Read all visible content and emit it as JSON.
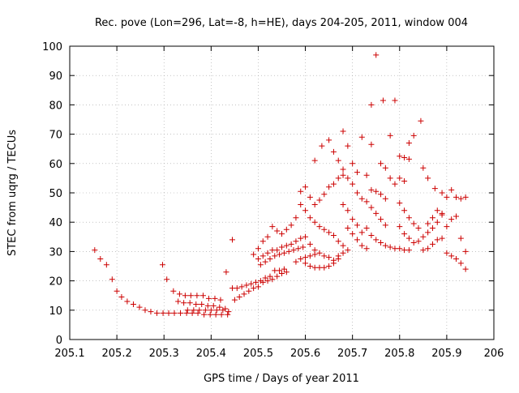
{
  "chart_data": {
    "type": "scatter",
    "title": "Rec. pove (Lon=296, Lat=-8, h=HE), days 204-205, 2011, window 004",
    "xlabel": "GPS time / Days of year 2011",
    "ylabel": "STEC from uqrg / TECUs",
    "xlim": [
      205.1,
      206
    ],
    "ylim": [
      0,
      100
    ],
    "xticks": [
      "205.1",
      "205.2",
      "205.3",
      "205.4",
      "205.5",
      "205.6",
      "205.7",
      "205.8",
      "205.9",
      "206"
    ],
    "yticks": [
      "0",
      "10",
      "20",
      "30",
      "40",
      "50",
      "60",
      "70",
      "80",
      "90",
      "100"
    ],
    "grid": true,
    "marker": "+",
    "color": "#cc0000",
    "series": [
      {
        "points": [
          [
            205.153,
            30.5
          ],
          [
            205.165,
            27.5
          ],
          [
            205.178,
            25.5
          ],
          [
            205.19,
            20.5
          ],
          [
            205.2,
            16.5
          ],
          [
            205.21,
            14.5
          ],
          [
            205.222,
            13
          ],
          [
            205.235,
            12
          ],
          [
            205.248,
            11
          ],
          [
            205.26,
            10
          ],
          [
            205.272,
            9.5
          ],
          [
            205.285,
            9
          ],
          [
            205.298,
            9
          ],
          [
            205.31,
            9
          ],
          [
            205.322,
            9
          ],
          [
            205.335,
            9
          ],
          [
            205.348,
            9
          ],
          [
            205.36,
            9
          ],
          [
            205.372,
            9
          ],
          [
            205.385,
            8.5
          ],
          [
            205.398,
            8.5
          ],
          [
            205.41,
            8.5
          ],
          [
            205.422,
            8.5
          ],
          [
            205.435,
            8.5
          ],
          [
            205.297,
            25.5
          ],
          [
            205.306,
            20.5
          ],
          [
            205.32,
            16.5
          ],
          [
            205.333,
            15.5
          ],
          [
            205.345,
            15
          ],
          [
            205.357,
            15
          ],
          [
            205.37,
            15
          ],
          [
            205.383,
            15
          ],
          [
            205.395,
            14
          ],
          [
            205.408,
            14
          ],
          [
            205.42,
            13.5
          ],
          [
            205.33,
            13
          ],
          [
            205.342,
            12.5
          ],
          [
            205.355,
            12.5
          ],
          [
            205.368,
            12
          ],
          [
            205.38,
            12
          ],
          [
            205.393,
            11.5
          ],
          [
            205.405,
            11.5
          ],
          [
            205.418,
            11
          ],
          [
            205.43,
            10.5
          ],
          [
            205.35,
            10
          ],
          [
            205.363,
            10
          ],
          [
            205.375,
            10
          ],
          [
            205.388,
            10
          ],
          [
            205.4,
            10
          ],
          [
            205.412,
            10
          ],
          [
            205.425,
            10
          ],
          [
            205.437,
            9.5
          ],
          [
            205.432,
            23
          ],
          [
            205.445,
            34
          ],
          [
            205.445,
            17.5
          ],
          [
            205.455,
            17.5
          ],
          [
            205.465,
            18
          ],
          [
            205.475,
            18.5
          ],
          [
            205.485,
            19
          ],
          [
            205.495,
            19.5
          ],
          [
            205.505,
            20
          ],
          [
            205.515,
            21
          ],
          [
            205.525,
            21.5
          ],
          [
            205.535,
            23.5
          ],
          [
            205.545,
            23.5
          ],
          [
            205.555,
            24
          ],
          [
            205.45,
            13.5
          ],
          [
            205.46,
            14.5
          ],
          [
            205.47,
            15.5
          ],
          [
            205.48,
            16.5
          ],
          [
            205.49,
            17.5
          ],
          [
            205.5,
            18
          ],
          [
            205.51,
            19.5
          ],
          [
            205.52,
            20
          ],
          [
            205.53,
            20.5
          ],
          [
            205.54,
            21.5
          ],
          [
            205.55,
            22.5
          ],
          [
            205.56,
            23
          ],
          [
            205.49,
            29
          ],
          [
            205.5,
            31
          ],
          [
            205.51,
            33.5
          ],
          [
            205.52,
            35
          ],
          [
            205.53,
            38.5
          ],
          [
            205.54,
            37
          ],
          [
            205.55,
            36
          ],
          [
            205.56,
            37.5
          ],
          [
            205.57,
            39
          ],
          [
            205.58,
            41.5
          ],
          [
            205.5,
            27.5
          ],
          [
            205.51,
            28.5
          ],
          [
            205.52,
            29.5
          ],
          [
            205.53,
            30.5
          ],
          [
            205.54,
            30.5
          ],
          [
            205.55,
            31.5
          ],
          [
            205.56,
            32
          ],
          [
            205.57,
            32.5
          ],
          [
            205.58,
            33.5
          ],
          [
            205.59,
            34.5
          ],
          [
            205.505,
            25.5
          ],
          [
            205.515,
            26.5
          ],
          [
            205.525,
            27.5
          ],
          [
            205.535,
            28.5
          ],
          [
            205.545,
            29
          ],
          [
            205.555,
            29.5
          ],
          [
            205.565,
            30
          ],
          [
            205.575,
            30.5
          ],
          [
            205.585,
            31
          ],
          [
            205.595,
            31.5
          ],
          [
            205.58,
            26.5
          ],
          [
            205.59,
            27.5
          ],
          [
            205.6,
            28
          ],
          [
            205.61,
            28.5
          ],
          [
            205.62,
            29
          ],
          [
            205.59,
            50.5
          ],
          [
            205.6,
            52
          ],
          [
            205.61,
            48.5
          ],
          [
            205.62,
            46
          ],
          [
            205.63,
            47.5
          ],
          [
            205.64,
            49.5
          ],
          [
            205.65,
            52
          ],
          [
            205.66,
            53
          ],
          [
            205.67,
            55
          ],
          [
            205.68,
            56
          ],
          [
            205.59,
            46
          ],
          [
            205.6,
            44
          ],
          [
            205.61,
            41.5
          ],
          [
            205.62,
            40
          ],
          [
            205.63,
            38.5
          ],
          [
            205.64,
            37.5
          ],
          [
            205.65,
            36.5
          ],
          [
            205.66,
            35.5
          ],
          [
            205.67,
            33.5
          ],
          [
            205.68,
            32
          ],
          [
            205.6,
            35
          ],
          [
            205.61,
            32.5
          ],
          [
            205.62,
            30.5
          ],
          [
            205.63,
            29.5
          ],
          [
            205.64,
            28.5
          ],
          [
            205.65,
            28
          ],
          [
            205.66,
            27
          ],
          [
            205.67,
            28.5
          ],
          [
            205.68,
            29.5
          ],
          [
            205.69,
            30.5
          ],
          [
            205.6,
            26
          ],
          [
            205.61,
            25
          ],
          [
            205.62,
            24.5
          ],
          [
            205.63,
            24.5
          ],
          [
            205.64,
            24.5
          ],
          [
            205.65,
            25
          ],
          [
            205.66,
            26
          ],
          [
            205.67,
            27.5
          ],
          [
            205.62,
            61
          ],
          [
            205.635,
            66
          ],
          [
            205.65,
            68
          ],
          [
            205.66,
            64
          ],
          [
            205.67,
            61
          ],
          [
            205.68,
            71
          ],
          [
            205.69,
            66
          ],
          [
            205.7,
            60
          ],
          [
            205.71,
            57
          ],
          [
            205.72,
            69
          ],
          [
            205.68,
            58
          ],
          [
            205.69,
            55
          ],
          [
            205.7,
            53
          ],
          [
            205.71,
            50
          ],
          [
            205.72,
            48
          ],
          [
            205.68,
            46
          ],
          [
            205.69,
            44
          ],
          [
            205.7,
            41
          ],
          [
            205.71,
            39
          ],
          [
            205.72,
            36.5
          ],
          [
            205.69,
            38
          ],
          [
            205.7,
            36
          ],
          [
            205.71,
            34
          ],
          [
            205.72,
            32
          ],
          [
            205.73,
            31
          ],
          [
            205.74,
            80
          ],
          [
            205.75,
            97
          ],
          [
            205.765,
            81.5
          ],
          [
            205.78,
            69.5
          ],
          [
            205.79,
            81.5
          ],
          [
            205.74,
            66.5
          ],
          [
            205.76,
            60
          ],
          [
            205.77,
            58.5
          ],
          [
            205.78,
            55
          ],
          [
            205.79,
            53
          ],
          [
            205.73,
            56
          ],
          [
            205.74,
            51
          ],
          [
            205.75,
            50.5
          ],
          [
            205.76,
            49.5
          ],
          [
            205.77,
            48
          ],
          [
            205.73,
            47
          ],
          [
            205.74,
            45
          ],
          [
            205.75,
            43
          ],
          [
            205.76,
            41
          ],
          [
            205.77,
            39
          ],
          [
            205.73,
            38
          ],
          [
            205.74,
            35.5
          ],
          [
            205.75,
            34
          ],
          [
            205.76,
            33
          ],
          [
            205.77,
            32
          ],
          [
            205.78,
            31.5
          ],
          [
            205.79,
            31
          ],
          [
            205.8,
            31
          ],
          [
            205.81,
            30.5
          ],
          [
            205.82,
            30.5
          ],
          [
            205.8,
            62.5
          ],
          [
            205.81,
            62
          ],
          [
            205.82,
            61.5
          ],
          [
            205.83,
            69.5
          ],
          [
            205.845,
            74.5
          ],
          [
            205.8,
            55
          ],
          [
            205.81,
            54
          ],
          [
            205.82,
            67
          ],
          [
            205.85,
            58.5
          ],
          [
            205.86,
            55
          ],
          [
            205.8,
            46.5
          ],
          [
            205.81,
            44
          ],
          [
            205.82,
            41.5
          ],
          [
            205.83,
            39.5
          ],
          [
            205.84,
            38
          ],
          [
            205.8,
            38.5
          ],
          [
            205.81,
            36
          ],
          [
            205.82,
            34.5
          ],
          [
            205.83,
            33
          ],
          [
            205.84,
            33.5
          ],
          [
            205.85,
            35
          ],
          [
            205.86,
            36.5
          ],
          [
            205.87,
            38
          ],
          [
            205.88,
            40
          ],
          [
            205.89,
            42.5
          ],
          [
            205.86,
            39.5
          ],
          [
            205.87,
            41.5
          ],
          [
            205.875,
            51.5
          ],
          [
            205.89,
            50
          ],
          [
            205.9,
            48.5
          ],
          [
            205.91,
            51
          ],
          [
            205.92,
            48.5
          ],
          [
            205.93,
            48
          ],
          [
            205.94,
            48.5
          ],
          [
            205.85,
            30.5
          ],
          [
            205.86,
            31
          ],
          [
            205.87,
            32.5
          ],
          [
            205.88,
            34
          ],
          [
            205.89,
            34.5
          ],
          [
            205.9,
            38.5
          ],
          [
            205.91,
            41
          ],
          [
            205.92,
            42
          ],
          [
            205.93,
            34.5
          ],
          [
            205.94,
            30
          ],
          [
            205.88,
            44
          ],
          [
            205.89,
            43
          ],
          [
            205.9,
            29.5
          ],
          [
            205.91,
            28.5
          ],
          [
            205.92,
            27.5
          ],
          [
            205.93,
            26
          ],
          [
            205.94,
            24
          ]
        ]
      }
    ]
  }
}
